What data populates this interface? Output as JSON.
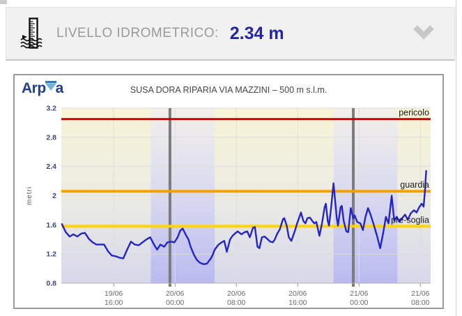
{
  "header": {
    "label": "LIVELLO IDROMETRICO:",
    "value": "2.34 m",
    "gauge_icon": "hydrometric-gauge-icon",
    "chevron_icon": "chevron-down-icon"
  },
  "panel": {
    "logo": {
      "part1": "Arp",
      "part2": "a"
    }
  },
  "chart_data": {
    "type": "line",
    "title": "SUSA DORA RIPARIA VIA MAZZINI – 500 m s.l.m.",
    "ylabel": "metri",
    "ylim": [
      0.8,
      3.2
    ],
    "y_ticks": [
      "3.2",
      "2.8",
      "2.4",
      "2",
      "1.6",
      "1.2",
      "0.8"
    ],
    "xlim": [
      "19/06 09:10",
      "21/06 09:20"
    ],
    "x_ticks": [
      "19/06 16:00",
      "20/06 00:00",
      "20/06 08:00",
      "20/06 16:00",
      "21/06 00:00",
      "21/06 08:00"
    ],
    "grid": true,
    "night_bands": [
      [
        "19/06 20:50",
        "20/06 05:10"
      ],
      [
        "20/06 20:40",
        "21/06 05:00"
      ]
    ],
    "day_separators": [
      "19/06 23:20",
      "20/06 23:15"
    ],
    "thresholds": [
      {
        "name": "pericolo",
        "value": 3.05,
        "color": "#cc0000",
        "width": 3
      },
      {
        "name": "guardia",
        "value": 2.06,
        "color": "#f5a200",
        "width": 4
      },
      {
        "name": "pre-soglia",
        "value": 1.58,
        "color": "#ffd400",
        "width": 4
      }
    ],
    "series": [
      {
        "name": "livello idrometrico (m)",
        "color": "#2323c8",
        "points": [
          [
            "19/06 09:15",
            1.61
          ],
          [
            "19/06 09:45",
            1.5
          ],
          [
            "19/06 10:15",
            1.44
          ],
          [
            "19/06 10:45",
            1.47
          ],
          [
            "19/06 11:15",
            1.44
          ],
          [
            "19/06 11:45",
            1.48
          ],
          [
            "19/06 12:15",
            1.49
          ],
          [
            "19/06 12:45",
            1.41
          ],
          [
            "19/06 13:15",
            1.36
          ],
          [
            "19/06 13:45",
            1.33
          ],
          [
            "19/06 14:15",
            1.33
          ],
          [
            "19/06 14:45",
            1.33
          ],
          [
            "19/06 15:15",
            1.24
          ],
          [
            "19/06 15:45",
            1.18
          ],
          [
            "19/06 16:15",
            1.17
          ],
          [
            "19/06 16:45",
            1.15
          ],
          [
            "19/06 17:15",
            1.14
          ],
          [
            "19/06 17:45",
            1.26
          ],
          [
            "19/06 18:15",
            1.37
          ],
          [
            "19/06 18:45",
            1.33
          ],
          [
            "19/06 19:15",
            1.32
          ],
          [
            "19/06 19:45",
            1.36
          ],
          [
            "19/06 20:15",
            1.4
          ],
          [
            "19/06 20:45",
            1.43
          ],
          [
            "19/06 21:15",
            1.33
          ],
          [
            "19/06 21:40",
            1.26
          ],
          [
            "19/06 22:05",
            1.33
          ],
          [
            "19/06 22:35",
            1.3
          ],
          [
            "19/06 23:00",
            1.36
          ],
          [
            "19/06 23:30",
            1.37
          ],
          [
            "19/06 23:55",
            1.36
          ],
          [
            "20/06 00:20",
            1.43
          ],
          [
            "20/06 00:40",
            1.52
          ],
          [
            "20/06 01:00",
            1.55
          ],
          [
            "20/06 01:25",
            1.46
          ],
          [
            "20/06 01:45",
            1.4
          ],
          [
            "20/06 02:00",
            1.31
          ],
          [
            "20/06 02:25",
            1.2
          ],
          [
            "20/06 02:50",
            1.12
          ],
          [
            "20/06 03:15",
            1.08
          ],
          [
            "20/06 03:45",
            1.06
          ],
          [
            "20/06 04:10",
            1.07
          ],
          [
            "20/06 04:40",
            1.14
          ],
          [
            "20/06 04:55",
            1.19
          ],
          [
            "20/06 05:10",
            1.26
          ],
          [
            "20/06 05:40",
            1.33
          ],
          [
            "20/06 06:05",
            1.36
          ],
          [
            "20/06 06:25",
            1.38
          ],
          [
            "20/06 06:45",
            1.23
          ],
          [
            "20/06 07:10",
            1.4
          ],
          [
            "20/06 07:30",
            1.45
          ],
          [
            "20/06 07:55",
            1.49
          ],
          [
            "20/06 08:10",
            1.51
          ],
          [
            "20/06 08:40",
            1.47
          ],
          [
            "20/06 09:05",
            1.5
          ],
          [
            "20/06 09:25",
            1.51
          ],
          [
            "20/06 09:45",
            1.43
          ],
          [
            "20/06 10:10",
            1.56
          ],
          [
            "20/06 10:25",
            1.57
          ],
          [
            "20/06 10:45",
            1.3
          ],
          [
            "20/06 11:00",
            1.28
          ],
          [
            "20/06 11:20",
            1.43
          ],
          [
            "20/06 11:40",
            1.44
          ],
          [
            "20/06 12:00",
            1.41
          ],
          [
            "20/06 12:25",
            1.37
          ],
          [
            "20/06 12:45",
            1.36
          ],
          [
            "20/06 13:00",
            1.4
          ],
          [
            "20/06 13:20",
            1.48
          ],
          [
            "20/06 13:40",
            1.54
          ],
          [
            "20/06 14:05",
            1.68
          ],
          [
            "20/06 14:15",
            1.69
          ],
          [
            "20/06 14:35",
            1.58
          ],
          [
            "20/06 14:50",
            1.43
          ],
          [
            "20/06 15:10",
            1.38
          ],
          [
            "20/06 15:40",
            1.53
          ],
          [
            "20/06 15:55",
            1.62
          ],
          [
            "20/06 16:25",
            1.77
          ],
          [
            "20/06 16:45",
            1.65
          ],
          [
            "20/06 17:00",
            1.62
          ],
          [
            "20/06 17:15",
            1.69
          ],
          [
            "20/06 17:35",
            1.7
          ],
          [
            "20/06 17:55",
            1.65
          ],
          [
            "20/06 18:10",
            1.62
          ],
          [
            "20/06 18:25",
            1.64
          ],
          [
            "20/06 18:50",
            1.45
          ],
          [
            "20/06 19:10",
            1.62
          ],
          [
            "20/06 19:30",
            1.84
          ],
          [
            "20/06 19:40",
            1.89
          ],
          [
            "20/06 19:55",
            1.65
          ],
          [
            "20/06 20:05",
            1.59
          ],
          [
            "20/06 20:20",
            1.82
          ],
          [
            "20/06 20:40",
            2.17
          ],
          [
            "20/06 21:05",
            1.7
          ],
          [
            "20/06 21:15",
            1.59
          ],
          [
            "20/06 21:35",
            1.84
          ],
          [
            "20/06 21:45",
            1.86
          ],
          [
            "20/06 22:00",
            1.65
          ],
          [
            "20/06 22:20",
            1.51
          ],
          [
            "20/06 22:35",
            1.5
          ],
          [
            "20/06 22:55",
            1.83
          ],
          [
            "20/06 23:15",
            1.69
          ],
          [
            "20/06 23:25",
            1.73
          ],
          [
            "20/06 23:45",
            1.64
          ],
          [
            "21/06 00:10",
            1.62
          ],
          [
            "21/06 00:30",
            1.53
          ],
          [
            "21/06 00:50",
            1.71
          ],
          [
            "21/06 01:10",
            1.83
          ],
          [
            "21/06 01:30",
            1.74
          ],
          [
            "21/06 01:55",
            1.6
          ],
          [
            "21/06 02:20",
            1.45
          ],
          [
            "21/06 02:45",
            1.28
          ],
          [
            "21/06 03:10",
            1.5
          ],
          [
            "21/06 03:30",
            1.71
          ],
          [
            "21/06 03:50",
            1.62
          ],
          [
            "21/06 04:15",
            2.0
          ],
          [
            "21/06 04:35",
            1.66
          ],
          [
            "21/06 04:55",
            1.71
          ],
          [
            "21/06 05:15",
            1.64
          ],
          [
            "21/06 05:40",
            1.7
          ],
          [
            "21/06 06:00",
            1.74
          ],
          [
            "21/06 06:20",
            1.67
          ],
          [
            "21/06 06:45",
            1.76
          ],
          [
            "21/06 07:10",
            1.8
          ],
          [
            "21/06 07:30",
            1.77
          ],
          [
            "21/06 07:50",
            1.84
          ],
          [
            "21/06 08:10",
            1.89
          ],
          [
            "21/06 08:25",
            1.85
          ],
          [
            "21/06 08:35",
            2.05
          ],
          [
            "21/06 08:45",
            2.34
          ]
        ]
      }
    ],
    "colors": {
      "series_line": "#2323c8",
      "plot_bg_top": "#f8f4d6",
      "plot_bg_bottom": "#d7d8ea",
      "night_band": "#b4b4f0",
      "day_separator": "#7c7c7c",
      "y_tick_text": "#3c4382",
      "x_tick_text": "#6b6b6b"
    }
  }
}
